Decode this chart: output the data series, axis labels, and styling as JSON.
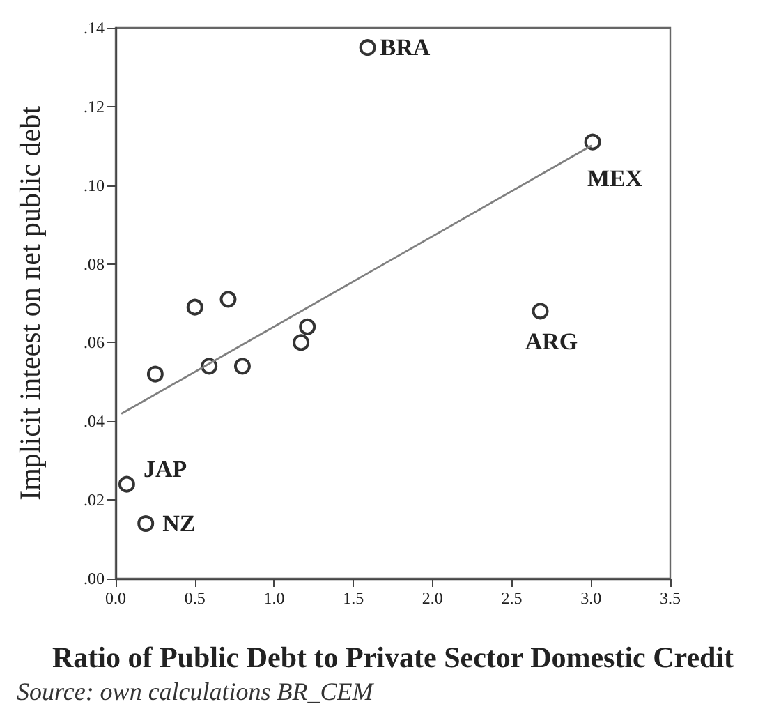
{
  "chart_data": {
    "type": "scatter",
    "xlabel": "Ratio of Public Debt to Private Sector Domestic Credit",
    "ylabel": "Implicit inteest on net public debt",
    "annotations": [
      {
        "text": "BRA",
        "x": 1.59,
        "y": 0.135
      },
      {
        "text": "MEX",
        "x": 3.01,
        "y": 0.111
      },
      {
        "text": "ARG",
        "x": 2.68,
        "y": 0.068
      },
      {
        "text": "JAP",
        "x": 0.07,
        "y": 0.024
      },
      {
        "text": "NZ",
        "x": 0.19,
        "y": 0.014
      },
      "Source: own calculations BR_CEM"
    ],
    "series": [
      {
        "color": "#000000",
        "x": [
          0.07,
          0.19,
          0.25,
          0.5,
          0.59,
          0.71,
          0.8,
          1.17,
          1.21,
          1.59,
          2.68,
          3.01
        ],
        "values": [
          0.024,
          0.014,
          0.052,
          0.069,
          0.054,
          0.071,
          0.054,
          0.06,
          0.064,
          0.135,
          0.068,
          0.111
        ]
      },
      {
        "type": "line",
        "color": "#808080",
        "marker": "none",
        "x": [
          0.04,
          3.0
        ],
        "values": [
          0.042,
          0.11
        ]
      }
    ],
    "xlim": [
      0,
      3.5
    ],
    "xticks": [
      {
        "value": 0,
        "label": "0.0"
      },
      0.5,
      {
        "value": 1,
        "label": "1.0"
      },
      1.5,
      {
        "value": 2,
        "label": "2.0"
      },
      2.5,
      {
        "value": 3,
        "label": "3.0"
      },
      3.5
    ],
    "ylim": [
      0,
      0.14
    ],
    "yticks": [
      {
        "value": 0,
        "label": ".00"
      },
      {
        "value": 0.02,
        "label": ".02"
      },
      {
        "value": 0.04,
        "label": ".04"
      },
      {
        "value": 0.06,
        "label": ".06"
      },
      {
        "value": 0.08,
        "label": ".08"
      },
      {
        "value": 0.1,
        "label": ".10"
      },
      {
        "value": 0.12,
        "label": ".12"
      },
      {
        "value": 0.14,
        "label": ".14"
      }
    ],
    "marker": "circle"
  }
}
